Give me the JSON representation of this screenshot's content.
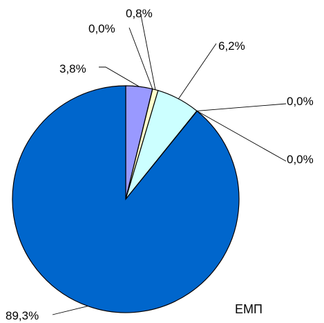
{
  "chart_data": {
    "type": "pie",
    "annotation": "ЕМП",
    "slices": [
      {
        "label": "3,8%",
        "value": 3.8,
        "color": "#9999ff"
      },
      {
        "label": "0,0%",
        "value": 0.02,
        "color": "#993366"
      },
      {
        "label": "0,8%",
        "value": 0.8,
        "color": "#ffffcc"
      },
      {
        "label": "6,2%",
        "value": 6.2,
        "color": "#ccffff"
      },
      {
        "label": "0,0%",
        "value": 0.02,
        "color": "#660066"
      },
      {
        "label": "0,0%",
        "value": 0.02,
        "color": "#ff8080"
      },
      {
        "label": "89,3%",
        "value": 89.3,
        "color": "#0066cc"
      }
    ]
  }
}
